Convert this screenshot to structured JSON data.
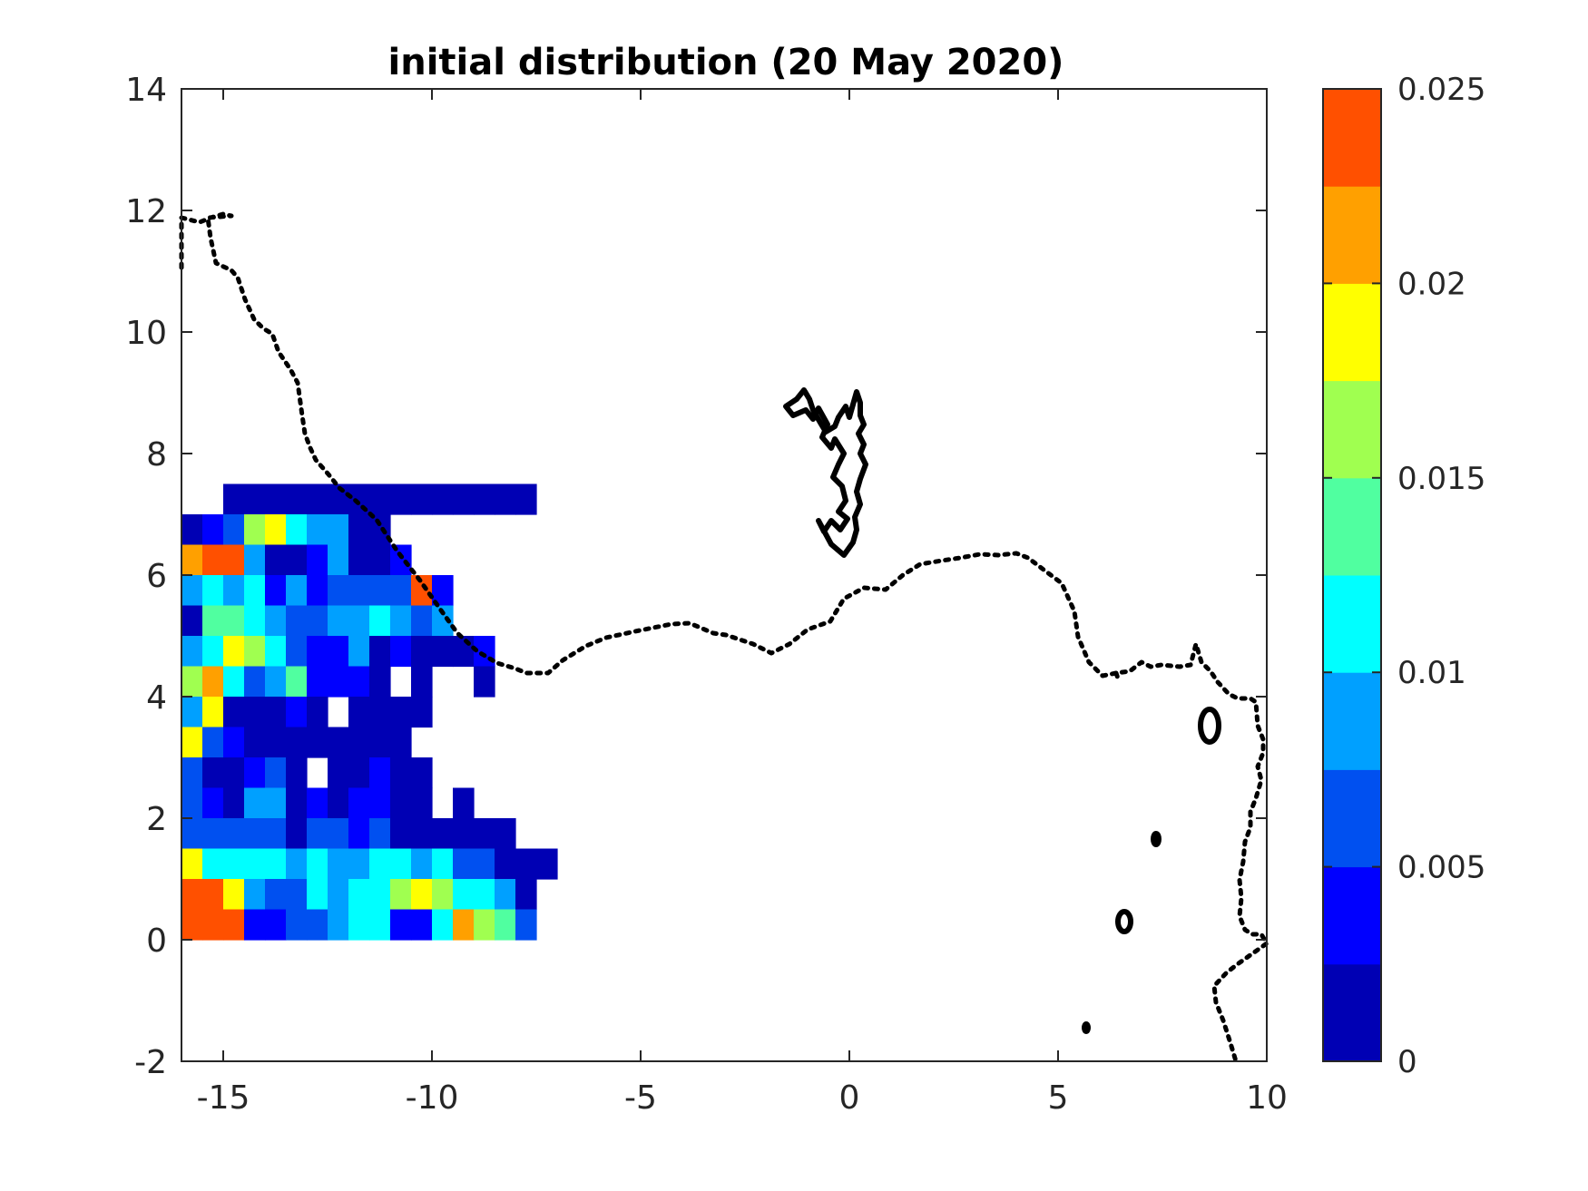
{
  "chart_data": {
    "type": "heatmap",
    "title": "initial distribution (20 May 2020)",
    "xlabel": "",
    "ylabel": "",
    "xlim": [
      -16,
      10
    ],
    "ylim": [
      -2,
      14
    ],
    "xticks": [
      -15,
      -10,
      -5,
      0,
      5,
      10
    ],
    "yticks": [
      -2,
      0,
      2,
      4,
      6,
      8,
      10,
      12,
      14
    ],
    "xtick_labels": [
      "-15",
      "-10",
      "-5",
      "0",
      "5",
      "10"
    ],
    "ytick_labels": [
      "-2",
      "0",
      "2",
      "4",
      "6",
      "8",
      "10",
      "12",
      "14"
    ],
    "grid": false,
    "colormap": "jet",
    "colorbar": {
      "range": [
        0,
        0.025
      ],
      "levels": 10,
      "ticks": [
        0,
        0.005,
        0.01,
        0.015,
        0.02,
        0.025
      ],
      "tick_labels": [
        "0",
        "0.005",
        "0.01",
        "0.015",
        "0.02",
        "0.025"
      ],
      "colors": [
        "#0000b4",
        "#0000ff",
        "#0050f0",
        "#00a0ff",
        "#00ffff",
        "#50ffa0",
        "#a0ff50",
        "#ffff00",
        "#ffa000",
        "#ff5000"
      ]
    },
    "grid_cells": {
      "cell_width_deg": 0.5,
      "cell_height_deg": 0.5,
      "x_start": -16,
      "rows": [
        {
          "y": 7.0,
          "values": [
            null,
            null,
            0.001,
            0.001,
            0.001,
            0.001,
            0.001,
            0.001,
            0.001,
            0.001,
            0.001,
            0.001,
            0.001,
            0.001,
            0.001,
            0.001,
            0.001,
            null
          ]
        },
        {
          "y": 6.5,
          "values": [
            0.001,
            0.004,
            0.006,
            0.017,
            0.019,
            0.012,
            0.008,
            0.008,
            0.001,
            0.001
          ]
        },
        {
          "y": 6.0,
          "values": [
            0.022,
            0.024,
            0.024,
            0.008,
            0.001,
            0.001,
            0.004,
            0.008,
            0.001,
            0.001,
            0.004
          ]
        },
        {
          "y": 5.5,
          "values": [
            0.008,
            0.012,
            0.008,
            0.012,
            0.004,
            0.008,
            0.004,
            0.006,
            0.006,
            0.006,
            0.006,
            0.024,
            0.004
          ]
        },
        {
          "y": 5.0,
          "values": [
            0.001,
            0.014,
            0.014,
            0.012,
            0.008,
            0.006,
            0.006,
            0.008,
            0.008,
            0.012,
            0.008,
            0.006,
            0.008
          ]
        },
        {
          "y": 4.5,
          "values": [
            0.008,
            0.012,
            0.019,
            0.017,
            0.012,
            0.006,
            0.004,
            0.004,
            0.008,
            0.001,
            0.004,
            0.001,
            0.001,
            0.001,
            0.004
          ]
        },
        {
          "y": 4.0,
          "values": [
            0.017,
            0.022,
            0.012,
            0.006,
            0.008,
            0.014,
            0.004,
            0.004,
            0.004,
            0.001,
            null,
            0.001,
            null,
            null,
            0.001
          ]
        },
        {
          "y": 3.5,
          "values": [
            0.008,
            0.019,
            0.001,
            0.001,
            0.001,
            0.004,
            0.001,
            null,
            0.001,
            0.001,
            0.001,
            0.001
          ]
        },
        {
          "y": 3.0,
          "values": [
            0.019,
            0.006,
            0.004,
            0.001,
            0.001,
            0.001,
            0.001,
            0.001,
            0.001,
            0.001,
            0.001
          ]
        },
        {
          "y": 2.5,
          "values": [
            0.006,
            0.001,
            0.001,
            0.004,
            0.006,
            0.001,
            null,
            0.001,
            0.001,
            0.004,
            0.001,
            0.001
          ]
        },
        {
          "y": 2.0,
          "values": [
            0.006,
            0.004,
            0.001,
            0.008,
            0.008,
            0.001,
            0.004,
            0.001,
            0.004,
            0.004,
            0.001,
            0.001,
            null,
            0.001
          ]
        },
        {
          "y": 1.5,
          "values": [
            0.006,
            0.006,
            0.006,
            0.006,
            0.006,
            0.001,
            0.006,
            0.006,
            0.004,
            0.006,
            0.001,
            0.001,
            0.001,
            0.001,
            0.001,
            0.001
          ]
        },
        {
          "y": 1.0,
          "values": [
            0.019,
            0.012,
            0.012,
            0.012,
            0.012,
            0.008,
            0.012,
            0.008,
            0.008,
            0.012,
            0.012,
            0.008,
            0.012,
            0.006,
            0.006,
            0.001,
            0.001,
            0.001
          ]
        },
        {
          "y": 0.5,
          "values": [
            0.024,
            0.024,
            0.019,
            0.008,
            0.006,
            0.006,
            0.012,
            0.008,
            0.012,
            0.012,
            0.017,
            0.019,
            0.017,
            0.012,
            0.012,
            0.008,
            0.001
          ]
        },
        {
          "y": 0.0,
          "values": [
            0.024,
            0.024,
            0.024,
            0.004,
            0.004,
            0.006,
            0.006,
            0.008,
            0.012,
            0.012,
            0.004,
            0.004,
            0.012,
            0.022,
            0.017,
            0.014,
            0.006
          ]
        }
      ]
    }
  }
}
